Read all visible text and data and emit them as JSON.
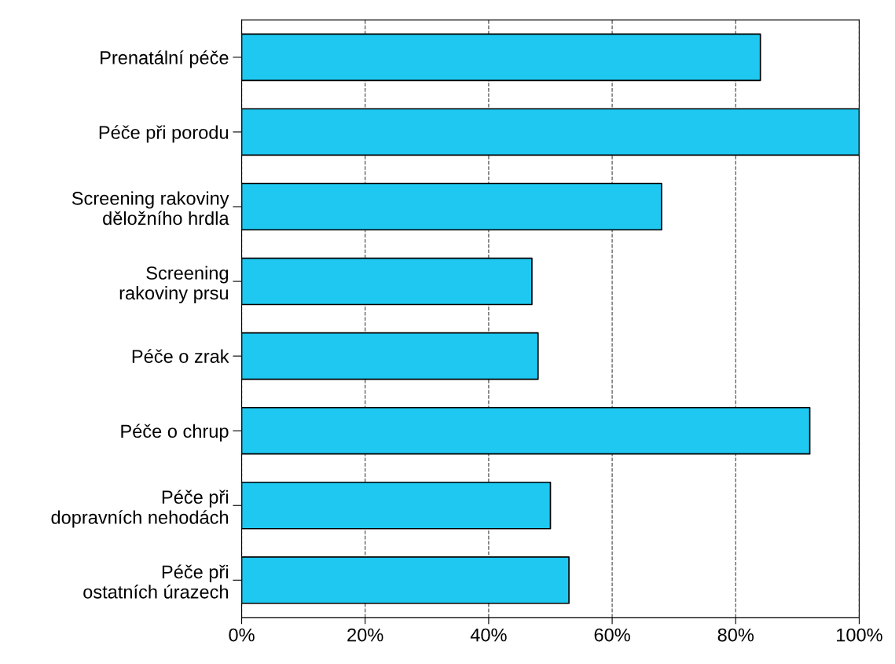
{
  "chart_data": {
    "type": "bar",
    "orientation": "horizontal",
    "categories": [
      "Prenatální péče",
      "Péče při porodu",
      "Screening rakoviny\nděložního hrdla",
      "Screening\nrakoviny prsu",
      "Péče o zrak",
      "Péče o chrup",
      "Péče při\ndopravních nehodách",
      "Péče při\nostatních úrazech"
    ],
    "values": [
      84,
      100,
      68,
      47,
      48,
      92,
      50,
      53
    ],
    "color": "#1ec8f0",
    "xlim": [
      0,
      100
    ],
    "xticks": [
      {
        "value": 0,
        "label": "0%"
      },
      {
        "value": 20,
        "label": "20%"
      },
      {
        "value": 40,
        "label": "40%"
      },
      {
        "value": 60,
        "label": "60%"
      },
      {
        "value": 80,
        "label": "80%"
      },
      {
        "value": 100,
        "label": "100%"
      }
    ],
    "grid": "x"
  }
}
